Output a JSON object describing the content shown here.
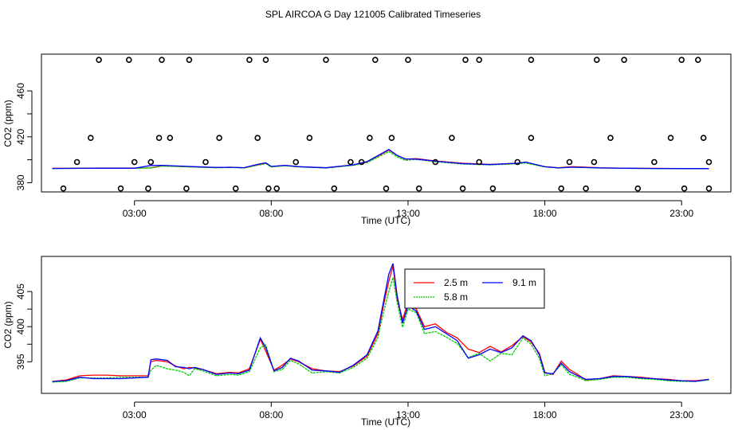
{
  "figure": {
    "title": "SPL AIRCOA G  Day 121005  Calibrated Timeseries"
  },
  "chart_data": [
    {
      "type": "line",
      "panel": "top",
      "xlabel": "Time (UTC)",
      "ylabel": "CO2 (ppm)",
      "xlim": [
        -0.4,
        24.8
      ],
      "ylim": [
        372,
        492
      ],
      "xticks": [
        3,
        8,
        13,
        18,
        23
      ],
      "xtick_labels": [
        "03:00",
        "08:00",
        "13:00",
        "18:00",
        "23:00"
      ],
      "yticks": [
        380,
        420,
        460
      ],
      "ytick_labels": [
        "380",
        "420",
        "460"
      ],
      "series": [
        {
          "name": "2.5 m",
          "color": "#ff0000",
          "x": [
            0,
            1,
            2,
            3,
            3.6,
            4,
            5,
            6,
            6.5,
            7,
            7.5,
            7.8,
            8,
            8.5,
            9,
            10,
            11,
            11.5,
            12,
            12.3,
            12.6,
            12.9,
            13.3,
            14,
            15,
            16,
            17,
            17.3,
            18,
            18.5,
            19,
            20,
            21,
            22,
            23,
            24
          ],
          "y": [
            392.5,
            392.7,
            392.8,
            392.8,
            392.9,
            394.8,
            394.0,
            393.2,
            393.5,
            393.0,
            395.5,
            397.0,
            394.0,
            395.0,
            394.0,
            393.0,
            395.5,
            398.0,
            404.5,
            408.5,
            404.0,
            400.5,
            401.0,
            399.0,
            397.0,
            396.0,
            397.0,
            397.8,
            394.0,
            393.0,
            394.0,
            393.0,
            392.6,
            392.5,
            392.3,
            392.3
          ]
        },
        {
          "name": "5.8 m",
          "color": "#00cc00",
          "x": [
            0,
            1,
            2,
            3,
            3.6,
            4,
            5,
            6,
            6.5,
            7,
            7.5,
            7.8,
            8,
            8.5,
            9,
            10,
            11,
            11.5,
            12,
            12.3,
            12.6,
            12.9,
            13.3,
            14,
            15,
            16,
            17,
            17.3,
            18,
            18.5,
            19,
            20,
            21,
            22,
            23,
            24
          ],
          "y": [
            392.3,
            392.5,
            392.6,
            392.6,
            392.8,
            394.5,
            393.8,
            393.0,
            393.3,
            392.8,
            395.2,
            396.6,
            393.8,
            394.8,
            393.8,
            392.8,
            395.2,
            397.5,
            403.5,
            407.0,
            402.5,
            399.5,
            400.3,
            398.3,
            396.3,
            395.5,
            396.5,
            397.2,
            393.8,
            392.8,
            393.5,
            392.8,
            392.5,
            392.3,
            392.2,
            392.2
          ]
        },
        {
          "name": "9.1 m",
          "color": "#0000ff",
          "x": [
            0,
            1,
            2,
            3,
            3.6,
            4,
            5,
            6,
            6.5,
            7,
            7.5,
            7.8,
            8,
            8.5,
            9,
            10,
            11,
            11.5,
            12,
            12.3,
            12.6,
            12.9,
            13.3,
            14,
            15,
            16,
            17,
            17.3,
            18,
            18.5,
            19,
            20,
            21,
            22,
            23,
            24
          ],
          "y": [
            392.4,
            392.5,
            392.6,
            392.6,
            395.0,
            395.2,
            394.2,
            393.3,
            393.5,
            393.1,
            396.0,
            397.4,
            394.2,
            395.2,
            394.0,
            393.0,
            395.6,
            398.4,
            405.0,
            409.0,
            403.8,
            400.8,
            400.6,
            398.8,
            396.6,
            395.8,
            397.0,
            398.0,
            393.9,
            392.9,
            393.6,
            392.9,
            392.6,
            392.4,
            392.3,
            392.3
          ]
        }
      ],
      "outliers": {
        "symbol": "open-circle",
        "x": [
          1.7,
          2.8,
          4.0,
          5.0,
          7.2,
          7.8,
          10.0,
          11.8,
          13.0,
          15.1,
          15.6,
          17.5,
          19.9,
          20.9,
          23.0,
          23.6,
          0.4,
          0.9,
          1.4,
          2.5,
          3.0,
          3.5,
          3.6,
          3.9,
          4.3,
          4.9,
          5.6,
          6.1,
          6.7,
          7.5,
          7.9,
          8.2,
          8.9,
          9.4,
          10.3,
          10.9,
          11.3,
          11.6,
          12.2,
          12.4,
          13.4,
          14.0,
          14.6,
          15.0,
          15.6,
          16.1,
          17.0,
          17.5,
          18.6,
          18.9,
          19.5,
          19.8,
          20.4,
          21.4,
          22.0,
          22.6,
          23.1,
          23.8,
          24.0,
          24.0
        ],
        "y": [
          487,
          487,
          487,
          487,
          487,
          487,
          487,
          487,
          487,
          487,
          487,
          487,
          487,
          487,
          487,
          487,
          375,
          398,
          419,
          375,
          398,
          375,
          398,
          419,
          419,
          375,
          398,
          419,
          375,
          419,
          375,
          375,
          398,
          419,
          375,
          398,
          398,
          419,
          375,
          419,
          375,
          398,
          419,
          375,
          398,
          375,
          398,
          419,
          375,
          398,
          375,
          398,
          419,
          375,
          398,
          419,
          375,
          419,
          398,
          375
        ]
      }
    },
    {
      "type": "line",
      "panel": "bottom",
      "xlabel": "Time (UTC)",
      "ylabel": "CO2 (ppm)",
      "xlim": [
        -0.4,
        24.8
      ],
      "ylim": [
        390.5,
        410
      ],
      "xticks": [
        3,
        8,
        13,
        18,
        23
      ],
      "xtick_labels": [
        "03:00",
        "08:00",
        "13:00",
        "18:00",
        "23:00"
      ],
      "yticks": [
        395,
        400,
        405
      ],
      "ytick_labels": [
        "395",
        "400",
        "405"
      ],
      "legend": {
        "position": "top-right-of-center",
        "entries": [
          {
            "label": "2.5 m",
            "color": "#ff0000"
          },
          {
            "label": "9.1 m",
            "color": "#0000ff"
          },
          {
            "label": "5.8 m",
            "color": "#00cc00"
          }
        ]
      },
      "series": [
        {
          "name": "2.5 m",
          "color": "#ff0000",
          "x": [
            0,
            0.5,
            1,
            1.5,
            2,
            2.5,
            3,
            3.5,
            3.6,
            3.8,
            4.2,
            4.5,
            4.8,
            5.0,
            5.2,
            5.5,
            6.0,
            6.5,
            6.8,
            7.2,
            7.6,
            7.8,
            8.1,
            8.4,
            8.7,
            9.0,
            9.5,
            10.0,
            10.5,
            11.0,
            11.5,
            11.9,
            12.1,
            12.3,
            12.45,
            12.6,
            12.8,
            13.0,
            13.3,
            13.6,
            14.0,
            14.4,
            14.8,
            15.2,
            15.6,
            16.0,
            16.4,
            16.8,
            17.2,
            17.5,
            17.8,
            18.0,
            18.3,
            18.6,
            18.9,
            19.2,
            19.5,
            20.0,
            20.5,
            21.0,
            21.5,
            22.0,
            22.5,
            23.0,
            23.5,
            24.0
          ],
          "y": [
            392.2,
            392.4,
            393.0,
            393.1,
            393.1,
            393.0,
            393.0,
            393.0,
            395.0,
            395.2,
            395.0,
            394.4,
            394.0,
            394.2,
            394.1,
            393.9,
            393.3,
            393.5,
            393.4,
            394.0,
            398.2,
            396.5,
            393.8,
            394.5,
            395.4,
            395.0,
            394.0,
            393.7,
            393.6,
            394.4,
            395.8,
            399.0,
            403.0,
            406.5,
            408.6,
            404.0,
            401.0,
            403.5,
            402.5,
            400.0,
            400.4,
            399.2,
            398.4,
            396.8,
            396.3,
            397.2,
            396.4,
            397.3,
            398.6,
            397.8,
            396.2,
            393.5,
            393.2,
            395.1,
            393.9,
            393.2,
            392.4,
            392.6,
            393.0,
            392.9,
            392.8,
            392.6,
            392.5,
            392.3,
            392.3,
            392.5
          ]
        },
        {
          "name": "5.8 m",
          "color": "#00cc00",
          "x": [
            0,
            0.5,
            1,
            1.5,
            2,
            2.5,
            3,
            3.5,
            3.6,
            3.8,
            4.2,
            4.5,
            4.8,
            5.0,
            5.2,
            5.5,
            6.0,
            6.5,
            6.8,
            7.2,
            7.6,
            7.8,
            8.1,
            8.4,
            8.7,
            9.0,
            9.5,
            10.0,
            10.5,
            11.0,
            11.5,
            11.9,
            12.1,
            12.3,
            12.45,
            12.6,
            12.8,
            13.0,
            13.3,
            13.6,
            14.0,
            14.4,
            14.8,
            15.2,
            15.6,
            16.0,
            16.4,
            16.8,
            17.2,
            17.5,
            17.8,
            18.0,
            18.3,
            18.6,
            18.9,
            19.2,
            19.5,
            20.0,
            20.5,
            21.0,
            21.5,
            22.0,
            22.5,
            23.0,
            23.5,
            24.0
          ],
          "y": [
            392.1,
            392.2,
            392.7,
            392.7,
            392.7,
            392.8,
            392.8,
            392.8,
            393.8,
            394.5,
            394.0,
            393.8,
            393.5,
            393.0,
            394.0,
            393.7,
            393.0,
            393.2,
            393.1,
            393.6,
            397.0,
            397.4,
            393.6,
            393.9,
            395.2,
            394.7,
            393.4,
            393.6,
            393.4,
            394.2,
            395.5,
            398.5,
            402.0,
            405.0,
            407.0,
            403.5,
            399.9,
            402.5,
            402.0,
            399.0,
            399.3,
            398.5,
            397.6,
            395.6,
            396.2,
            395.1,
            396.2,
            396.0,
            398.4,
            397.5,
            395.5,
            393.0,
            393.3,
            394.6,
            393.2,
            392.8,
            392.3,
            392.5,
            392.8,
            392.8,
            392.6,
            392.5,
            392.3,
            392.2,
            392.2,
            392.4
          ]
        },
        {
          "name": "9.1 m",
          "color": "#0000ff",
          "x": [
            0,
            0.5,
            1,
            1.5,
            2,
            2.5,
            3,
            3.5,
            3.6,
            3.8,
            4.2,
            4.5,
            4.8,
            5.0,
            5.2,
            5.5,
            6.0,
            6.5,
            6.8,
            7.2,
            7.6,
            7.8,
            8.1,
            8.4,
            8.7,
            9.0,
            9.5,
            10.0,
            10.5,
            11.0,
            11.5,
            11.9,
            12.1,
            12.3,
            12.45,
            12.6,
            12.8,
            13.0,
            13.3,
            13.6,
            14.0,
            14.4,
            14.8,
            15.2,
            15.6,
            16.0,
            16.4,
            16.8,
            17.2,
            17.5,
            17.8,
            18.0,
            18.3,
            18.6,
            18.9,
            19.2,
            19.5,
            20.0,
            20.5,
            21.0,
            21.5,
            22.0,
            22.5,
            23.0,
            23.5,
            24.0
          ],
          "y": [
            392.2,
            392.3,
            392.8,
            392.6,
            392.6,
            392.6,
            392.7,
            392.8,
            395.3,
            395.4,
            395.2,
            394.3,
            394.2,
            394.0,
            394.2,
            393.9,
            393.2,
            393.4,
            393.3,
            393.8,
            398.4,
            397.0,
            393.7,
            394.2,
            395.5,
            395.1,
            393.8,
            393.7,
            393.5,
            394.5,
            396.0,
            399.4,
            403.5,
            407.5,
            409.0,
            404.5,
            400.5,
            403.0,
            402.2,
            399.6,
            400.0,
            399.0,
            398.0,
            395.5,
            396.0,
            396.8,
            396.3,
            397.0,
            398.7,
            398.0,
            396.0,
            393.4,
            393.3,
            394.8,
            393.6,
            393.0,
            392.5,
            392.6,
            392.9,
            392.9,
            392.7,
            392.6,
            392.4,
            392.3,
            392.2,
            392.5
          ]
        }
      ]
    }
  ]
}
